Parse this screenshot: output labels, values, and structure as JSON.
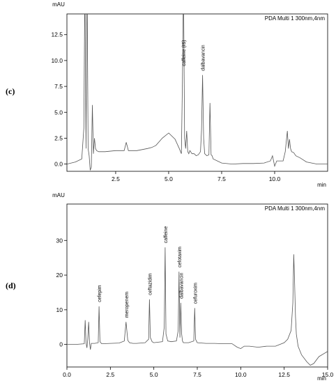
{
  "panels": [
    {
      "letter": "(c)"
    },
    {
      "letter": "(d)"
    }
  ],
  "chart_data": [
    {
      "type": "line",
      "ylabel": "mAU",
      "xlabel": "min",
      "legend": "PDA Multi 1 300nm,4nm",
      "legend_position": "top-right",
      "xlim": [
        0.2,
        12.5
      ],
      "ylim": [
        -0.7,
        14.5
      ],
      "xticks": [
        2.5,
        5.0,
        7.5,
        10.0
      ],
      "xtick_labels": [
        "2.5",
        "5.0",
        "7.5",
        "10.0"
      ],
      "yticks": [
        0.0,
        2.5,
        5.0,
        7.5,
        10.0,
        12.5
      ],
      "ytick_labels": [
        "0.0",
        "2.5",
        "5.0",
        "7.5",
        "10.0",
        "12.5"
      ],
      "grid": false,
      "color": "#555555",
      "trace": {
        "x": [
          0.2,
          0.6,
          0.9,
          1.0,
          1.05,
          1.1,
          1.15,
          1.2,
          1.25,
          1.3,
          1.35,
          1.4,
          1.45,
          1.5,
          1.55,
          1.6,
          1.7,
          1.8,
          2.0,
          2.5,
          2.9,
          3.0,
          3.1,
          3.5,
          4.0,
          4.2,
          4.4,
          4.7,
          5.0,
          5.3,
          5.5,
          5.6,
          5.65,
          5.7,
          5.75,
          5.8,
          5.85,
          5.9,
          5.95,
          6.0,
          6.1,
          6.2,
          6.3,
          6.4,
          6.5,
          6.55,
          6.6,
          6.65,
          6.7,
          6.8,
          6.9,
          6.95,
          7.0,
          7.05,
          7.1,
          7.5,
          8.0,
          8.5,
          9.0,
          9.5,
          9.8,
          9.9,
          10.0,
          10.1,
          10.2,
          10.4,
          10.5,
          10.6,
          10.65,
          10.7,
          10.75,
          10.8,
          10.9,
          11.0,
          11.2,
          11.5,
          12.0,
          12.5
        ],
        "y": [
          0.0,
          0.2,
          0.5,
          3.5,
          18,
          1.5,
          18,
          1.5,
          0.8,
          -0.6,
          -0.3,
          5.7,
          1.0,
          2.5,
          1.5,
          1.3,
          1.2,
          1.2,
          1.2,
          1.3,
          1.3,
          2.1,
          1.3,
          1.3,
          1.5,
          1.6,
          1.8,
          2.5,
          3.0,
          2.4,
          1.5,
          1.0,
          8.0,
          18,
          2.5,
          1.5,
          3.2,
          1.2,
          1.0,
          1.3,
          1.0,
          1.0,
          0.8,
          0.9,
          1.2,
          3.3,
          8.6,
          2.5,
          1.0,
          0.8,
          0.9,
          5.9,
          0.9,
          0.8,
          0.5,
          0.1,
          0.0,
          0.05,
          0.05,
          0.1,
          0.3,
          0.8,
          -0.2,
          0.3,
          0.3,
          0.3,
          1.2,
          3.2,
          1.5,
          2.4,
          1.5,
          1.2,
          1.1,
          0.8,
          0.6,
          0.2,
          0.0,
          0.0
        ]
      },
      "annotations": [
        {
          "label": "caffeine (IS)",
          "x": 5.7
        },
        {
          "label": "dalbavancin",
          "x": 6.6
        }
      ]
    },
    {
      "type": "line",
      "ylabel": "mAU",
      "xlabel": "min",
      "legend": "PDA Multi 1 300nm,4nm",
      "legend_position": "top-right",
      "xlim": [
        0.0,
        15.0
      ],
      "ylim": [
        -6.5,
        40.5
      ],
      "xticks": [
        0.0,
        2.5,
        5.0,
        7.5,
        10.0,
        12.5,
        15.0
      ],
      "xtick_labels": [
        "0.0",
        "2.5",
        "5.0",
        "7.5",
        "10.0",
        "12.5",
        "15.0"
      ],
      "yticks": [
        0,
        10,
        20,
        30
      ],
      "ytick_labels": [
        "0",
        "10",
        "20",
        "30"
      ],
      "grid": false,
      "color": "#555555",
      "trace": {
        "x": [
          0.0,
          0.5,
          1.0,
          1.05,
          1.1,
          1.15,
          1.2,
          1.25,
          1.3,
          1.35,
          1.4,
          1.6,
          1.8,
          1.85,
          1.9,
          2.0,
          2.5,
          3.0,
          3.3,
          3.4,
          3.5,
          3.6,
          3.8,
          4.0,
          4.5,
          4.7,
          4.75,
          4.8,
          4.9,
          5.0,
          5.5,
          5.6,
          5.65,
          5.7,
          5.8,
          6.0,
          6.3,
          6.4,
          6.45,
          6.5,
          6.55,
          6.6,
          6.65,
          6.7,
          6.8,
          7.0,
          7.3,
          7.35,
          7.4,
          7.5,
          8.0,
          8.5,
          9.0,
          9.5,
          9.8,
          10.0,
          10.2,
          10.5,
          11.0,
          11.5,
          12.0,
          12.5,
          12.7,
          12.9,
          13.0,
          13.05,
          13.1,
          13.15,
          13.2,
          13.3,
          13.5,
          13.8,
          14.0,
          14.2,
          14.5,
          15.0
        ],
        "y": [
          0.0,
          0.0,
          0.2,
          7.0,
          0.5,
          -1.0,
          1.5,
          6.5,
          0.5,
          -1.5,
          0.3,
          0.3,
          0.5,
          11.0,
          0.8,
          0.2,
          0.3,
          0.4,
          1.0,
          6.5,
          1.2,
          0.5,
          0.3,
          0.3,
          0.5,
          1.5,
          13.0,
          2.0,
          0.8,
          0.5,
          0.8,
          5.0,
          28.0,
          3.0,
          1.0,
          0.8,
          1.0,
          4.0,
          21.0,
          2.0,
          12.0,
          3.0,
          1.0,
          0.5,
          0.5,
          0.5,
          1.0,
          10.5,
          1.5,
          0.5,
          0.3,
          0.3,
          0.2,
          0.2,
          -0.8,
          -1.2,
          -0.5,
          -0.5,
          -0.8,
          -0.5,
          -0.5,
          0.5,
          1.5,
          4.0,
          12.0,
          26.0,
          18.0,
          8.0,
          3.0,
          -0.5,
          -3.0,
          -5.0,
          -6.0,
          -5.5,
          -3.5,
          -2.0
        ]
      },
      "annotations": [
        {
          "label": "cefepim",
          "x": 1.85
        },
        {
          "label": "meropenem",
          "x": 3.4
        },
        {
          "label": "ceftazidim",
          "x": 4.75
        },
        {
          "label": "caffeine",
          "x": 5.65
        },
        {
          "label": "cefotaxim",
          "x": 6.45
        },
        {
          "label": "dalbavancin",
          "x": 6.55
        },
        {
          "label": "cefuroxim",
          "x": 7.35
        }
      ]
    }
  ]
}
